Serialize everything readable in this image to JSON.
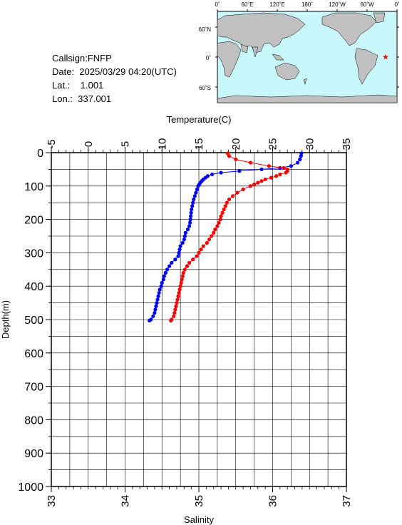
{
  "info": {
    "callsign": "Callsign:FNFP",
    "date": "Date:  2025/03/29 04:20(UTC)",
    "lat": "Lat.:    1.001",
    "lon": "Lon.:  337.001"
  },
  "map": {
    "lon_ticks": [
      "0˚",
      "60˚E",
      "120˚E",
      "180˚",
      "120˚W",
      "60˚W",
      "0˚"
    ],
    "lat_ticks": [
      "60˚N",
      "0˚",
      "60˚S"
    ],
    "ocean_color": "#c8f8fc",
    "land_color": "#c0c0c0",
    "marker": {
      "lon": 337.001,
      "lat": 1.001,
      "color": "#ff0000",
      "icon": "star-icon"
    }
  },
  "chart_data": {
    "type": "line",
    "title": "",
    "temperature_axis": {
      "label": "Temperature(C)",
      "range": [
        -5,
        35
      ],
      "ticks": [
        "-5",
        "0",
        "5",
        "10",
        "15",
        "20",
        "25",
        "30",
        "35"
      ]
    },
    "salinity_axis": {
      "label": "Salinity",
      "range": [
        33,
        37
      ],
      "ticks": [
        "33",
        "34",
        "35",
        "36",
        "37"
      ]
    },
    "depth_axis": {
      "label": "Depth(m)",
      "range": [
        0,
        1000
      ],
      "inverted": true,
      "ticks": [
        "0",
        "100",
        "200",
        "300",
        "400",
        "500",
        "600",
        "700",
        "800",
        "900",
        "1000"
      ]
    },
    "grid": true,
    "series": [
      {
        "axis": "temperature",
        "color": "#0000ff",
        "depth": [
          2,
          10,
          20,
          30,
          40,
          46,
          50,
          55,
          60,
          65,
          70,
          75,
          80,
          85,
          90,
          95,
          100,
          110,
          120,
          130,
          140,
          150,
          160,
          170,
          180,
          190,
          200,
          210,
          220,
          230,
          240,
          250,
          260,
          270,
          280,
          290,
          300,
          310,
          320,
          330,
          340,
          350,
          360,
          370,
          380,
          390,
          400,
          410,
          420,
          430,
          440,
          450,
          460,
          470,
          480,
          490,
          500,
          503
        ],
        "values": [
          28.9,
          28.85,
          28.7,
          28.4,
          27.5,
          26.0,
          23.5,
          20.5,
          18.0,
          16.8,
          16.2,
          15.9,
          15.6,
          15.4,
          15.2,
          15.05,
          14.9,
          14.75,
          14.6,
          14.45,
          14.3,
          14.2,
          14.1,
          14.0,
          13.95,
          13.9,
          13.85,
          13.8,
          13.7,
          13.5,
          13.2,
          13.1,
          13.0,
          12.8,
          12.5,
          12.4,
          12.3,
          12.2,
          11.8,
          11.3,
          11.0,
          10.7,
          10.5,
          10.3,
          10.2,
          10.0,
          9.9,
          9.7,
          9.6,
          9.5,
          9.4,
          9.3,
          9.2,
          9.1,
          9.0,
          8.8,
          8.5,
          8.3
        ]
      },
      {
        "axis": "salinity",
        "color": "#ff0000",
        "depth": [
          2,
          10,
          20,
          30,
          40,
          46,
          50,
          55,
          60,
          65,
          70,
          75,
          80,
          85,
          90,
          95,
          100,
          110,
          120,
          130,
          140,
          150,
          160,
          170,
          180,
          190,
          200,
          210,
          220,
          230,
          240,
          250,
          260,
          270,
          280,
          290,
          300,
          310,
          320,
          330,
          340,
          350,
          360,
          370,
          380,
          390,
          400,
          410,
          420,
          430,
          440,
          450,
          460,
          470,
          480,
          490,
          500,
          503
        ],
        "values": [
          35.39,
          35.41,
          35.5,
          35.7,
          35.95,
          36.15,
          36.2,
          36.2,
          36.18,
          36.1,
          36.05,
          35.98,
          35.9,
          35.85,
          35.8,
          35.75,
          35.7,
          35.6,
          35.52,
          35.46,
          35.41,
          35.38,
          35.36,
          35.34,
          35.32,
          35.3,
          35.29,
          35.27,
          35.25,
          35.22,
          35.2,
          35.17,
          35.14,
          35.11,
          35.06,
          35.03,
          35.0,
          34.97,
          34.92,
          34.87,
          34.84,
          34.81,
          34.79,
          34.78,
          34.77,
          34.76,
          34.75,
          34.74,
          34.73,
          34.72,
          34.71,
          34.7,
          34.69,
          34.68,
          34.67,
          34.66,
          34.63,
          34.62
        ]
      }
    ]
  }
}
